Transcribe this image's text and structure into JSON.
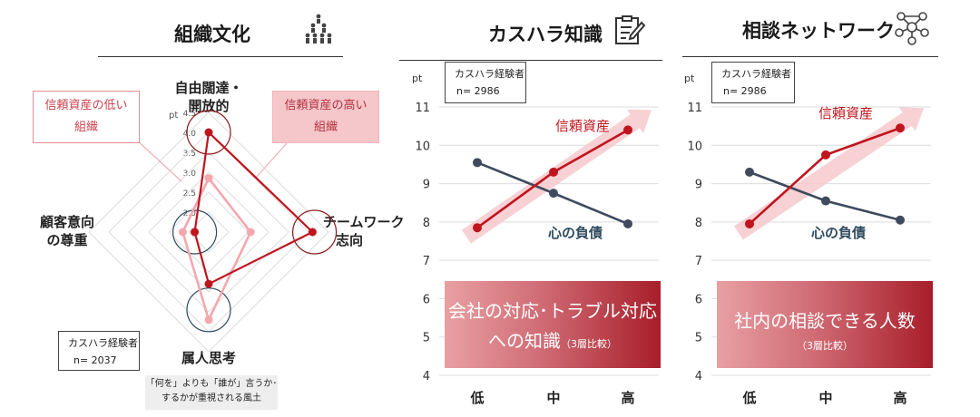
{
  "panels": {
    "culture": {
      "title": "組織文化",
      "icon": "people-group-icon",
      "axes": {
        "top_line1": "自由闊達・",
        "top_line2": "開放的",
        "right_line1": "チームワーク",
        "right_line2": "志向",
        "bottom": "属人思考",
        "left_line1": "顧客意向",
        "left_line2": "の尊重"
      },
      "low_label_line1": "信頼資産の低い",
      "low_label_line2": "組織",
      "high_label_line1": "信頼資産の高い",
      "high_label_line2": "組織",
      "sample_label": "カスハラ経験者",
      "sample_n": "n= 2037",
      "note_line1": "「何を」よりも「誰が」言うか･",
      "note_line2": "するかが重視される風土"
    },
    "knowledge": {
      "title": "カスハラ知識",
      "icon": "clipboard-pen-icon",
      "sample_label": "カスハラ経験者",
      "sample_n": "n= 2986",
      "box_line1": "会社の対応･トラブル対応",
      "box_line2a": "への知識",
      "box_line2b": "（3層比較）"
    },
    "network": {
      "title": "相談ネットワーク",
      "icon": "network-nodes-icon",
      "sample_label": "カスハラ経験者",
      "sample_n": "n= 2986",
      "box_line1": "社内の相談できる人数",
      "box_line2": "（3層比較）"
    }
  },
  "colors": {
    "red": "#c0141e",
    "pink": "#f3a8ad",
    "navy": "#3f4a5e",
    "arrow": "#f6c9cc",
    "grid": "#dddddd"
  },
  "chart_data": [
    {
      "type": "radar",
      "unit": "pt",
      "axes": [
        "自由闊達・開放的",
        "チームワーク志向",
        "属人思考",
        "顧客意向の尊重"
      ],
      "ticks": [
        "2.0",
        "2.5",
        "3.0",
        "3.5",
        "4.0",
        "4.5"
      ],
      "rmin": 1.5,
      "rmax": 4.5,
      "series": [
        {
          "name": "信頼資産の高い組織",
          "values": [
            4.0,
            4.1,
            2.8,
            1.85
          ]
        },
        {
          "name": "信頼資産の低い組織",
          "values": [
            2.85,
            2.55,
            3.7,
            2.15
          ]
        }
      ]
    },
    {
      "type": "line",
      "ylabel": "pt",
      "categories": [
        "低",
        "中",
        "高"
      ],
      "yticks": [
        "4",
        "5",
        "6",
        "7",
        "8",
        "9",
        "10",
        "11"
      ],
      "ylim": [
        4,
        11
      ],
      "series": [
        {
          "name": "信頼資産",
          "values": [
            7.85,
            9.3,
            10.4
          ]
        },
        {
          "name": "心の負債",
          "values": [
            9.55,
            8.75,
            7.95
          ]
        }
      ]
    },
    {
      "type": "line",
      "ylabel": "pt",
      "categories": [
        "低",
        "中",
        "高"
      ],
      "yticks": [
        "4",
        "5",
        "6",
        "7",
        "8",
        "9",
        "10",
        "11"
      ],
      "ylim": [
        4,
        11
      ],
      "series": [
        {
          "name": "信頼資産",
          "values": [
            7.95,
            9.75,
            10.45
          ]
        },
        {
          "name": "心の負債",
          "values": [
            9.3,
            8.55,
            8.05
          ]
        }
      ]
    }
  ]
}
